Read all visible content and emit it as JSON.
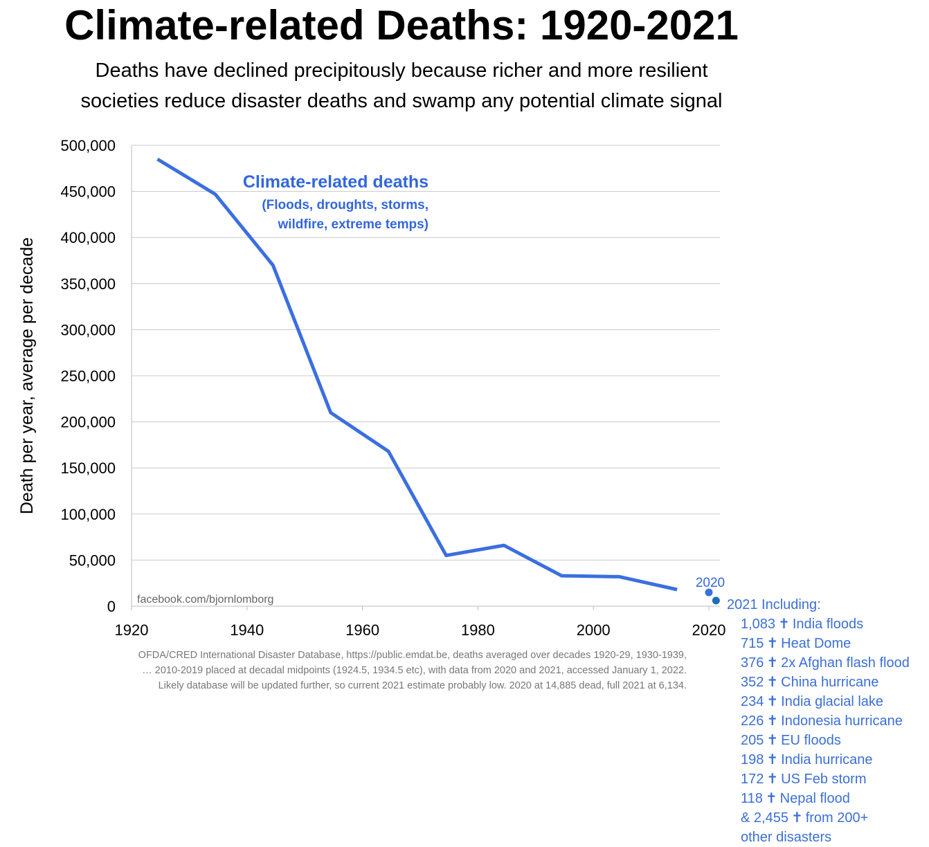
{
  "title": "Climate-related Deaths: 1920-2021",
  "subtitle_line1": "Deaths have declined precipitously because richer and more resilient",
  "subtitle_line2": "societies reduce disaster deaths and swamp any potential climate signal",
  "chart_data": {
    "type": "line",
    "title": "Climate-related Deaths: 1920-2021",
    "xlabel": "",
    "ylabel": "Death per year, average per decade",
    "xlim": [
      1920,
      2021
    ],
    "ylim": [
      0,
      500000
    ],
    "x_ticks": [
      "1920",
      "1940",
      "1960",
      "1980",
      "2000",
      "2020"
    ],
    "y_ticks": [
      "0",
      "50,000",
      "100,000",
      "150,000",
      "200,000",
      "250,000",
      "300,000",
      "350,000",
      "400,000",
      "450,000",
      "500,000"
    ],
    "grid": true,
    "series": [
      {
        "name": "Climate-related deaths",
        "description_line1": "(Floods, droughts, storms,",
        "description_line2": "wildfire, extreme temps)",
        "color": "#3b6fe0",
        "x": [
          1924.5,
          1934.5,
          1944.5,
          1954.5,
          1964.5,
          1974.5,
          1984.5,
          1994.5,
          2004.5,
          2014.5
        ],
        "values": [
          485000,
          447000,
          370000,
          210000,
          168000,
          55000,
          66000,
          33000,
          32000,
          18000
        ]
      }
    ],
    "points": [
      {
        "label": "2020",
        "x": 2020,
        "y": 14885,
        "color": "#3b6fe0"
      },
      {
        "label": "2021",
        "x": 2021,
        "y": 6134,
        "color": "#1f6fb2"
      }
    ]
  },
  "watermark": "facebook.com/bjornlomborg",
  "source_line1": "OFDA/CRED International Disaster Database, https://public.emdat.be, deaths averaged over decades 1920-29, 1930-1939,",
  "source_line2": "… 2010-2019 placed at decadal midpoints (1924.5, 1934.5 etc), with data from 2020 and 2021, accessed January 1, 2022.",
  "source_line3": "Likely database will be updated further, so current 2021 estimate probably low. 2020 at 14,885 dead, full 2021 at 6,134.",
  "breakdown_2021": {
    "header": "2021 Including:",
    "cross_symbol": "✝",
    "items": [
      {
        "count": "1,083",
        "event": "India floods"
      },
      {
        "count": "715",
        "event": "Heat Dome"
      },
      {
        "count": "376",
        "event": "2x Afghan flash flood"
      },
      {
        "count": "352",
        "event": "China hurricane"
      },
      {
        "count": "234",
        "event": "India glacial lake"
      },
      {
        "count": "226",
        "event": "Indonesia hurricane"
      },
      {
        "count": "205",
        "event": "EU floods"
      },
      {
        "count": "198",
        "event": "India hurricane"
      },
      {
        "count": "172",
        "event": "US Feb storm"
      },
      {
        "count": "118",
        "event": "Nepal flood"
      },
      {
        "count": "& 2,455",
        "event": "from 200+"
      }
    ],
    "tail": "other disasters"
  }
}
